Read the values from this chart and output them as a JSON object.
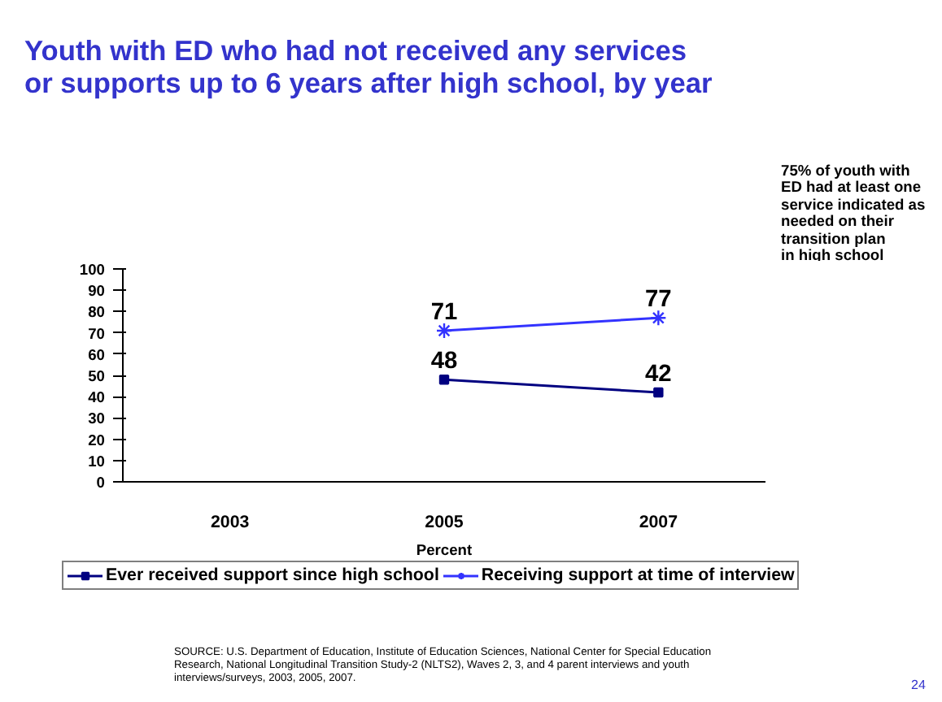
{
  "chart_data": {
    "type": "line",
    "title": "Youth with ED who had not received any services\nor supports up to 6 years after high school, by year",
    "categories": [
      "2003",
      "2005",
      "2007"
    ],
    "xlabel": "Percent",
    "series": [
      {
        "name": "Ever received support since high school",
        "color": "#000080",
        "marker": "square",
        "values": [
          null,
          48,
          42
        ]
      },
      {
        "name": "Receiving support at time of interview",
        "color": "#3333ff",
        "marker": "cross",
        "values": [
          null,
          71,
          77
        ]
      }
    ],
    "ylim": [
      0,
      100
    ],
    "yticks": [
      0,
      10,
      20,
      30,
      40,
      50,
      60,
      70,
      80,
      90,
      100
    ],
    "grid": false,
    "legend": "bottom",
    "data_labels": true,
    "line_style": "solid",
    "annotations": [
      "75% of youth with\nED had at least one\nservice indicated as\nneeded on their\ntransition plan\nin high school",
      "SOURCE: U.S. Department of Education, Institute of Education Sciences, National Center for Special Education\nResearch, National Longitudinal Transition Study-2 (NLTS2), Waves 2, 3, and 4 parent interviews and youth\ninterviews/surveys, 2003, 2005, 2007.",
      "24"
    ]
  }
}
